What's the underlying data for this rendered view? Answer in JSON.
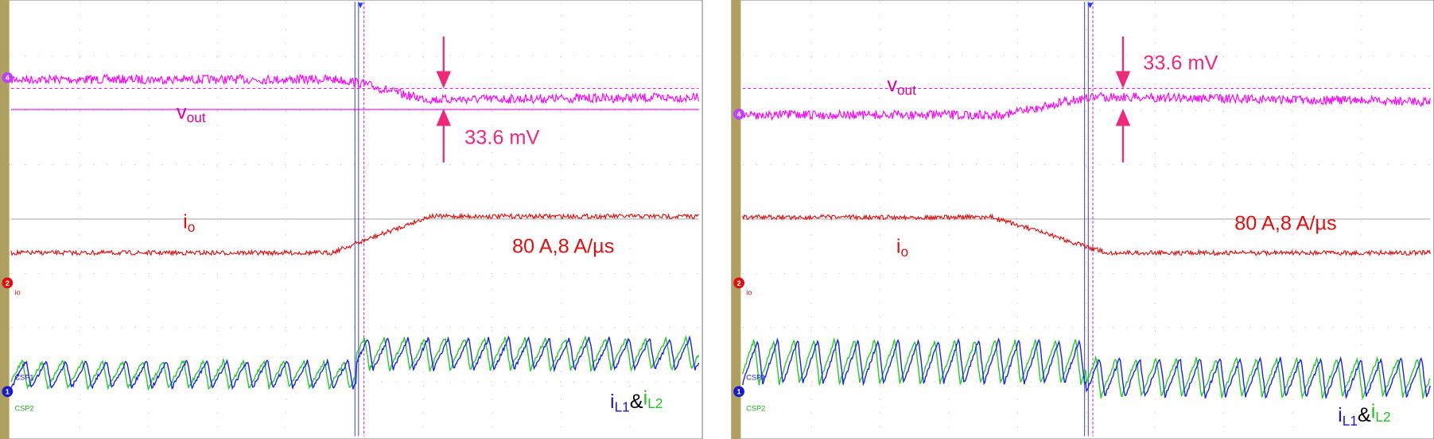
{
  "panels": [
    {
      "vout_label": {
        "main": "v",
        "sub": "out"
      },
      "delta_label": "33.6 mV",
      "io_label": {
        "main": "i",
        "sub": "o"
      },
      "load_label": "80 A,8 A/µs",
      "il_label": {
        "i1": "i",
        "s1": "L1",
        "amp": "&",
        "i2": "i",
        "s2": "L2"
      },
      "channel_markers": [
        "4",
        "2",
        "1"
      ],
      "channel_tags": [
        "io",
        "CSP1",
        "CSP2"
      ]
    },
    {
      "vout_label": {
        "main": "v",
        "sub": "out"
      },
      "delta_label": "33.6 mV",
      "io_label": {
        "main": "i",
        "sub": "o"
      },
      "load_label": "80 A,8 A/µs",
      "il_label": {
        "i1": "i",
        "s1": "L1",
        "amp": "&",
        "i2": "i",
        "s2": "L2"
      },
      "channel_markers": [
        "4",
        "2",
        "1"
      ],
      "channel_tags": [
        "io",
        "CSP1",
        "CSP2"
      ]
    }
  ]
}
